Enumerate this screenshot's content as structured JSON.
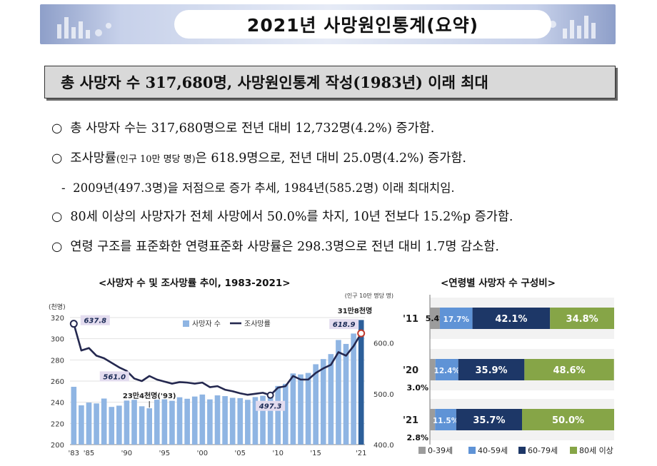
{
  "header": {
    "title": "2021년 사망원인통계(요약)"
  },
  "headline": "총 사망자 수 317,680명, 사망원인통계 작성(1983년) 이래 최대",
  "bullets": [
    {
      "marker": "○",
      "text": "총 사망자 수는 317,680명으로 전년 대비 12,732명(4.2%) 증가함."
    },
    {
      "marker": "○",
      "text_a": "조사망률",
      "text_small": "(인구 10만 명당 명)",
      "text_b": "은 618.9명으로, 전년 대비 25.0명(4.2%) 증가함."
    },
    {
      "marker": "-",
      "text": "2009년(497.3명)을 저점으로 증가 추세, 1984년(585.2명) 이래 최대치임."
    },
    {
      "marker": "○",
      "text": "80세 이상의 사망자가 전체 사망에서 50.0%를 차지, 10년 전보다 15.2%p 증가함."
    },
    {
      "marker": "○",
      "text": "연령 구조를 표준화한 연령표준화 사망률은 298.3명으로 전년 대비 1.7명 감소함."
    }
  ],
  "chart_data": [
    {
      "type": "bar",
      "title": "<사망자 수 및 조사망률 추이, 1983-2021>",
      "left_unit": "(천명)",
      "right_unit": "(인구 10만 명당 명)",
      "ylim": [
        200,
        320
      ],
      "y2lim": [
        400,
        650
      ],
      "y_ticks": [
        "320",
        "300",
        "280",
        "260",
        "240",
        "220",
        "200"
      ],
      "y2_ticks": [
        "600.0",
        "500.0",
        "400.0"
      ],
      "x_tick_labels": [
        "'83",
        "'85",
        "'90",
        "'95",
        "'00",
        "'05",
        "'10",
        "'15",
        "'21"
      ],
      "legend": [
        "사망자 수",
        "조사망률"
      ],
      "x": [
        1983,
        1984,
        1985,
        1986,
        1987,
        1988,
        1989,
        1990,
        1991,
        1992,
        1993,
        1994,
        1995,
        1996,
        1997,
        1998,
        1999,
        2000,
        2001,
        2002,
        2003,
        2004,
        2005,
        2006,
        2007,
        2008,
        2009,
        2010,
        2011,
        2012,
        2013,
        2014,
        2015,
        2016,
        2017,
        2018,
        2019,
        2020,
        2021
      ],
      "series": [
        {
          "name": "사망자 수",
          "values": [
            254.6,
            237.1,
            239.7,
            238.9,
            243.5,
            235.6,
            236.8,
            241.6,
            242.3,
            236.2,
            234.3,
            242.4,
            242.8,
            241.4,
            244.7,
            243.3,
            245.4,
            247.3,
            242.7,
            246.5,
            245.8,
            244.2,
            243.9,
            242.3,
            244.9,
            246.1,
            246.9,
            255.4,
            257.4,
            267.2,
            266.3,
            267.7,
            275.9,
            280.8,
            285.5,
            298.8,
            295.1,
            304.9,
            317.7
          ]
        },
        {
          "name": "조사망률",
          "values": [
            637.8,
            585.2,
            590,
            575,
            570,
            561.0,
            552,
            545,
            530,
            525,
            535,
            528,
            524,
            520,
            523,
            522,
            520,
            522,
            513,
            515,
            508,
            505,
            501,
            498,
            500,
            502,
            497.3,
            512,
            515,
            535,
            528,
            528,
            541,
            550,
            557,
            582,
            575,
            593.9,
            618.9
          ]
        }
      ],
      "annotations": [
        "637.8",
        "561.0",
        "23만4천명('93)",
        "497.3",
        "618.9",
        "31만8천명"
      ]
    },
    {
      "type": "bar",
      "title": "<연령별 사망자 수 구성비>",
      "categories": [
        "'11",
        "'20",
        "'21"
      ],
      "legend": [
        "0-39세",
        "40-59세",
        "60-79세",
        "80세 이상"
      ],
      "colors": [
        "#9c9c9c",
        "#5f93d6",
        "#1d3767",
        "#86a547"
      ],
      "series": [
        {
          "name": "0-39세",
          "values": [
            5.4,
            3.0,
            2.8
          ]
        },
        {
          "name": "40-59세",
          "values": [
            17.7,
            12.4,
            11.5
          ]
        },
        {
          "name": "60-79세",
          "values": [
            42.1,
            35.9,
            35.7
          ]
        },
        {
          "name": "80세 이상",
          "values": [
            34.8,
            48.6,
            50.0
          ]
        }
      ],
      "labels": [
        [
          "5.4%",
          "17.7%",
          "42.1%",
          "34.8%"
        ],
        [
          "3.0%",
          "12.4%",
          "35.9%",
          "48.6%"
        ],
        [
          "2.8%",
          "11.5%",
          "35.7%",
          "50.0%"
        ]
      ]
    }
  ]
}
